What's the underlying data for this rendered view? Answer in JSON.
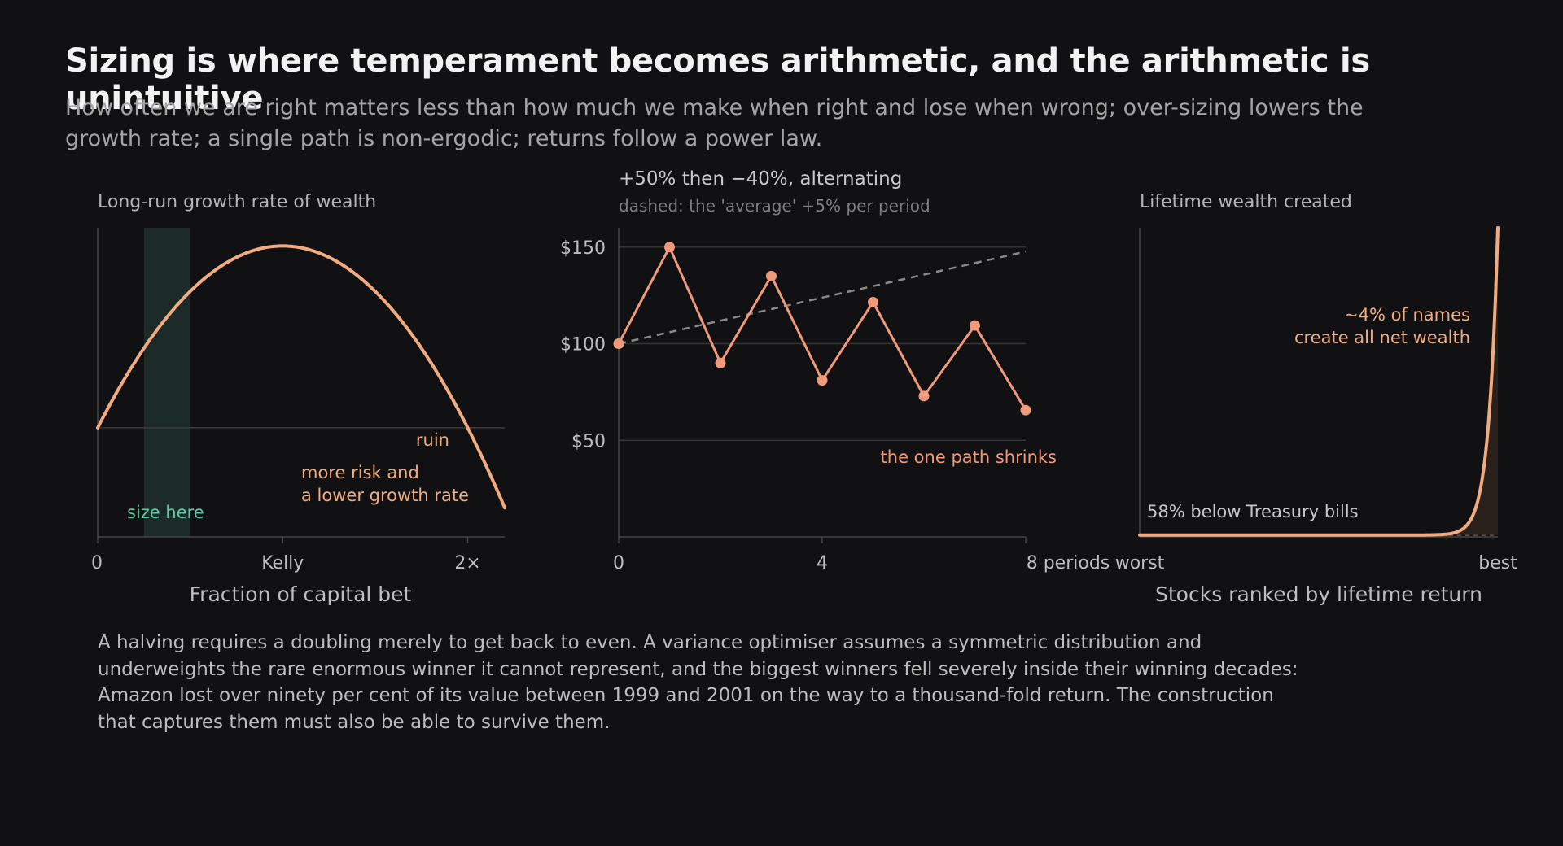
{
  "title": "Sizing is where temperament becomes arithmetic, and the arithmetic is unintuitive",
  "subtitle": "How often we are right matters less than how much we make when right and lose when wrong; over-sizing lowers the growth rate; a single path is non-ergodic; returns follow a power law.",
  "body_text": "A halving requires a doubling merely to get back to even. A variance optimiser assumes a symmetric distribution and underweights the rare enormous winner it cannot represent, and the biggest winners fell severely inside their winning decades: Amazon lost over ninety per cent of its value between 1999 and 2001 on the way to a thousand-fold return. The construction that captures them must also be able to survive them.",
  "colors": {
    "background": "#111113",
    "accent": "#f0ac80",
    "path": "#f0997b",
    "highlight": "#5fc9a4",
    "band": "#1c2b27",
    "axis": "#444444",
    "dashed": "#8a8a8a"
  },
  "chart_data": [
    {
      "type": "line",
      "title": "Long-run growth rate of wealth",
      "xlabel": "Fraction of capital bet",
      "ylabel": "",
      "x_ticks": [
        {
          "x": 0,
          "label": "0"
        },
        {
          "x": 1,
          "label": "Kelly"
        },
        {
          "x": 2,
          "label": "2×"
        }
      ],
      "xlim": [
        0,
        2.2
      ],
      "ylim": [
        -0.6,
        1.1
      ],
      "curve": {
        "formula": "g(f) = 2f - f^2",
        "x_range": [
          0,
          2.2
        ]
      },
      "reference_line_y": 0,
      "band": {
        "x_range": [
          0.25,
          0.5
        ],
        "label": "size here"
      },
      "annotations": {
        "ruin": "ruin",
        "over_sizing": [
          "more risk and",
          "a lower growth rate"
        ]
      },
      "grid": false
    },
    {
      "type": "line",
      "title": "+50% then −40%, alternating",
      "subtitle": "dashed: the 'average' +5% per period",
      "xlabel": "",
      "ylabel": "",
      "x_ticks": [
        {
          "x": 0,
          "label": "0"
        },
        {
          "x": 4,
          "label": "4"
        },
        {
          "x": 8,
          "label": "8 periods"
        }
      ],
      "y_ticks": [
        {
          "y": 50,
          "label": "$50"
        },
        {
          "y": 100,
          "label": "$100"
        },
        {
          "y": 150,
          "label": "$150"
        }
      ],
      "xlim": [
        0,
        8
      ],
      "ylim": [
        0,
        160
      ],
      "series": [
        {
          "x": [
            0,
            1,
            2,
            3,
            4,
            5,
            6,
            7,
            8
          ],
          "values": [
            100,
            150,
            90,
            135,
            81,
            121.5,
            72.9,
            109.4,
            65.6
          ]
        }
      ],
      "average_line": {
        "x": [
          0,
          8
        ],
        "values": [
          100,
          147.7
        ]
      },
      "grid": true,
      "annotation": "the one path shrinks"
    },
    {
      "type": "area",
      "title": "Lifetime wealth created",
      "xlabel": "Stocks ranked by lifetime return",
      "ylabel": "",
      "x_ticks": [
        {
          "x": 0,
          "label": "worst"
        },
        {
          "x": 1,
          "label": "best"
        }
      ],
      "xlim": [
        0,
        1
      ],
      "ylim": [
        0,
        1
      ],
      "curve": {
        "formula": "0.006 + 0.994 * x^38",
        "x_range": [
          0,
          1
        ]
      },
      "baseline_y": 0.006,
      "annotations": {
        "top": [
          "~4% of names",
          "create all net wealth"
        ],
        "bottom": "58% below Treasury bills"
      },
      "grid": false
    }
  ]
}
